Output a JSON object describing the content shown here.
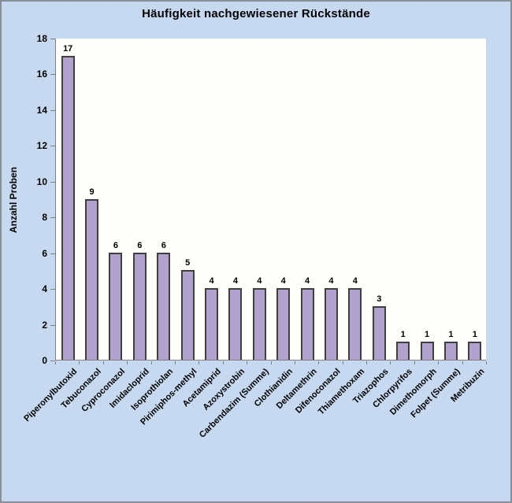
{
  "chart_data": {
    "type": "bar",
    "title": "Häufigkeit nachgewiesener Rückstände",
    "xlabel": "",
    "ylabel": "Anzahl Proben",
    "categories": [
      "Piperonylbutoxid",
      "Tebuconazol",
      "Cyproconazol",
      "Imidacloprid",
      "Isoprothiolan",
      "Pirimiphos-methyl",
      "Acetamiprid",
      "Azoxystrobin",
      "Carbendazim (Summe)",
      "Clothianidin",
      "Deltamethrin",
      "Difenoconazol",
      "Thiamethoxam",
      "Triazophos",
      "Chlorpyrifos",
      "Dimethomorph",
      "Folpet (Summe)",
      "Metribuzin"
    ],
    "values": [
      17,
      9,
      6,
      6,
      6,
      5,
      4,
      4,
      4,
      4,
      4,
      4,
      4,
      3,
      1,
      1,
      1,
      1
    ],
    "ylim": [
      0,
      18
    ],
    "ytick_step": 2,
    "grid": false,
    "legend": null,
    "bar_value_labels": true,
    "category_label_rotation_deg": 45
  },
  "colors": {
    "background": "#C6D9F1",
    "frame_border": "#879099",
    "plot_background": "#FEFFFB",
    "bar_fill": "#B0A2CC",
    "bar_border": "#3F3F3F",
    "axis_line": "#808080",
    "text": "#000000"
  }
}
